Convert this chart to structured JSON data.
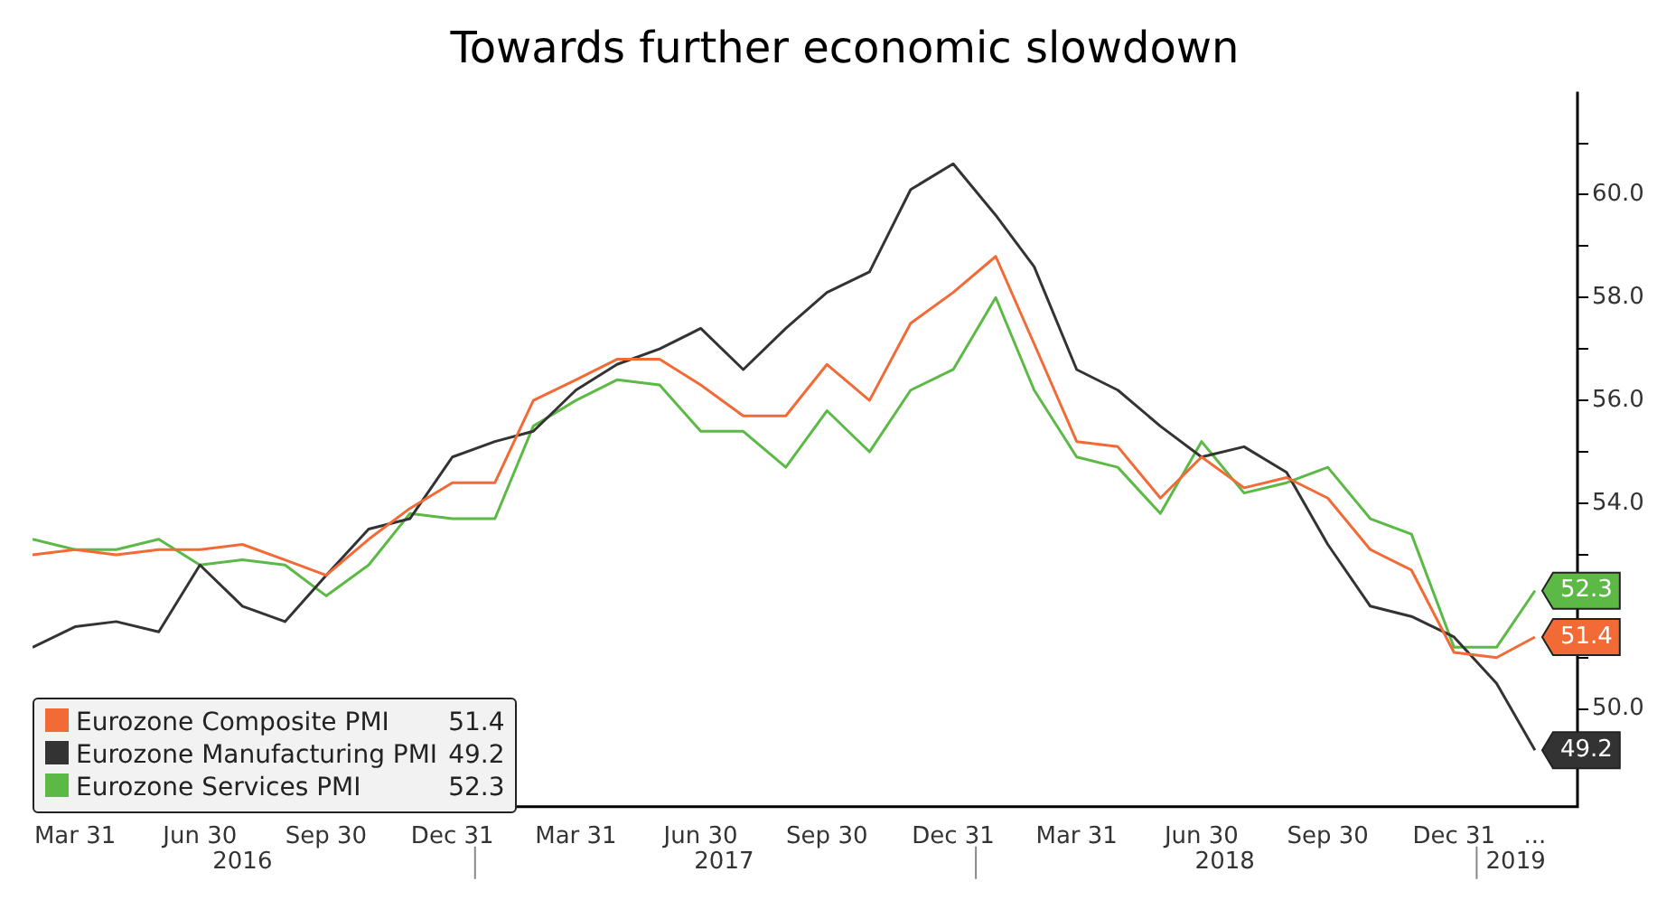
{
  "chart_data": {
    "type": "line",
    "title": "Towards further economic slowdown",
    "x": [
      "2016-02-29",
      "2016-03-31",
      "2016-04-30",
      "2016-05-31",
      "2016-06-30",
      "2016-07-31",
      "2016-08-31",
      "2016-09-30",
      "2016-10-31",
      "2016-11-30",
      "2016-12-31",
      "2017-01-31",
      "2017-02-28",
      "2017-03-31",
      "2017-04-30",
      "2017-05-31",
      "2017-06-30",
      "2017-07-31",
      "2017-08-31",
      "2017-09-30",
      "2017-10-31",
      "2017-11-30",
      "2017-12-31",
      "2018-01-31",
      "2018-02-28",
      "2018-03-31",
      "2018-04-30",
      "2018-05-31",
      "2018-06-30",
      "2018-07-31",
      "2018-08-31",
      "2018-09-30",
      "2018-10-31",
      "2018-11-30",
      "2018-12-31",
      "2019-01-31",
      "2019-02-28"
    ],
    "series": [
      {
        "name": "Eurozone Composite PMI",
        "color": "#f26a35",
        "values": [
          53.0,
          53.1,
          53.0,
          53.1,
          53.1,
          53.2,
          52.9,
          52.6,
          53.3,
          53.9,
          54.4,
          54.4,
          56.0,
          56.4,
          56.8,
          56.8,
          56.3,
          55.7,
          55.7,
          56.7,
          56.0,
          57.5,
          58.1,
          58.8,
          57.1,
          55.2,
          55.1,
          54.1,
          54.9,
          54.3,
          54.5,
          54.1,
          53.1,
          52.7,
          51.1,
          51.0,
          51.4
        ],
        "value_labels": [
          null,
          null,
          null,
          null,
          null,
          null,
          null,
          null,
          null,
          null,
          null,
          null,
          null,
          null,
          null,
          null,
          null,
          null,
          null,
          null,
          null,
          null,
          null,
          null,
          null,
          null,
          null,
          null,
          null,
          null,
          null,
          null,
          null,
          null,
          null,
          null,
          "51.4"
        ]
      },
      {
        "name": "Eurozone Manufacturing PMI",
        "color": "#333333",
        "values": [
          51.2,
          51.6,
          51.7,
          51.5,
          52.8,
          52.0,
          51.7,
          52.6,
          53.5,
          53.7,
          54.9,
          55.2,
          55.4,
          56.2,
          56.7,
          57.0,
          57.4,
          56.6,
          57.4,
          58.1,
          58.5,
          60.1,
          60.6,
          59.6,
          58.6,
          56.6,
          56.2,
          55.5,
          54.9,
          55.1,
          54.6,
          53.2,
          52.0,
          51.8,
          51.4,
          50.5,
          49.2
        ],
        "value_labels": [
          null,
          null,
          null,
          null,
          null,
          null,
          null,
          null,
          null,
          null,
          null,
          null,
          null,
          null,
          null,
          null,
          null,
          null,
          null,
          null,
          null,
          null,
          null,
          null,
          null,
          null,
          null,
          null,
          null,
          null,
          null,
          null,
          null,
          null,
          null,
          null,
          "49.2"
        ]
      },
      {
        "name": "Eurozone Services PMI",
        "color": "#5cb946",
        "values": [
          53.3,
          53.1,
          53.1,
          53.3,
          52.8,
          52.9,
          52.8,
          52.2,
          52.8,
          53.8,
          53.7,
          53.7,
          55.5,
          56.0,
          56.4,
          56.3,
          55.4,
          55.4,
          54.7,
          55.8,
          55.0,
          56.2,
          56.6,
          58.0,
          56.2,
          54.9,
          54.7,
          53.8,
          55.2,
          54.2,
          54.4,
          54.7,
          53.7,
          53.4,
          51.2,
          51.2,
          52.3
        ],
        "value_labels": [
          null,
          null,
          null,
          null,
          null,
          null,
          null,
          null,
          null,
          null,
          null,
          null,
          null,
          null,
          null,
          null,
          null,
          null,
          null,
          null,
          null,
          null,
          null,
          null,
          null,
          null,
          null,
          null,
          null,
          null,
          null,
          null,
          null,
          null,
          null,
          null,
          "52.3"
        ]
      }
    ],
    "xlim": [
      "2016-02-29",
      "2019-03-31"
    ],
    "xticks": [
      {
        "value": "2016-03-31",
        "label": "Mar 31"
      },
      {
        "value": "2016-06-30",
        "label": "Jun 30"
      },
      {
        "value": "2016-09-30",
        "label": "Sep 30"
      },
      {
        "value": "2016-12-31",
        "label": "Dec 31"
      },
      {
        "value": "2017-03-31",
        "label": "Mar 31"
      },
      {
        "value": "2017-06-30",
        "label": "Jun 30"
      },
      {
        "value": "2017-09-30",
        "label": "Sep 30"
      },
      {
        "value": "2017-12-31",
        "label": "Dec 31"
      },
      {
        "value": "2018-03-31",
        "label": "Mar 31"
      },
      {
        "value": "2018-06-30",
        "label": "Jun 30"
      },
      {
        "value": "2018-09-30",
        "label": "Sep 30"
      },
      {
        "value": "2018-12-31",
        "label": "Dec 31"
      },
      {
        "value": "2019-02-28",
        "label": "..."
      }
    ],
    "ylim": [
      48.1,
      62
    ],
    "yticks": [
      {
        "value": 49,
        "label": null
      },
      {
        "value": 50,
        "label": "50.0"
      },
      {
        "value": 51,
        "label": null
      },
      {
        "value": 52,
        "label": null
      },
      {
        "value": 53,
        "label": null
      },
      {
        "value": 54,
        "label": "54.0"
      },
      {
        "value": 55,
        "label": null
      },
      {
        "value": 56,
        "label": "56.0"
      },
      {
        "value": 57,
        "label": null
      },
      {
        "value": 58,
        "label": "58.0"
      },
      {
        "value": 59,
        "label": null
      },
      {
        "value": 60,
        "label": "60.0"
      },
      {
        "value": 61,
        "label": null
      }
    ],
    "annotations": [
      "2016",
      "2017",
      "2018",
      "2019"
    ],
    "grid": false,
    "legend": "bottom left",
    "marker": "none",
    "line_style": "solid"
  }
}
